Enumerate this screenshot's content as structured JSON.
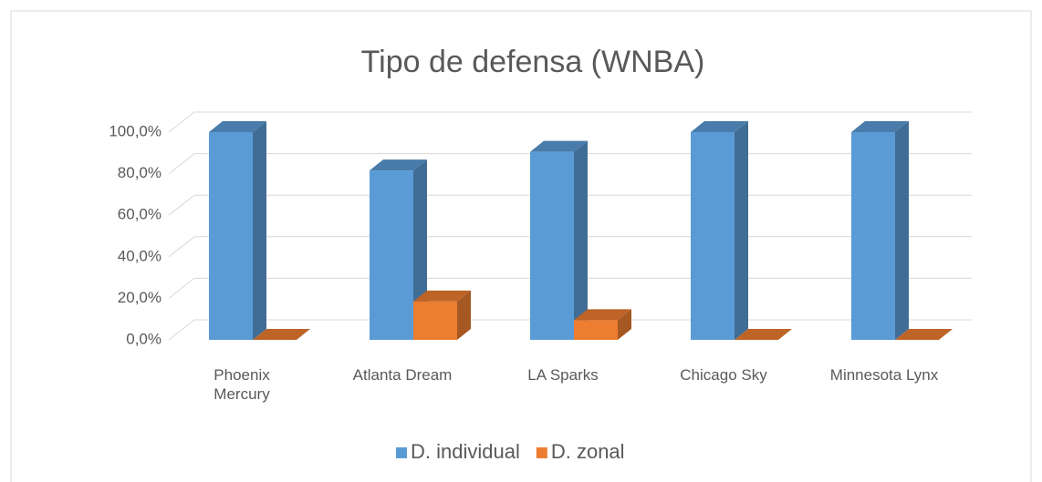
{
  "chart_data": {
    "type": "bar3d",
    "title": "Tipo de defensa (WNBA)",
    "categories": [
      "Phoenix Mercury",
      "Atlanta Dream",
      "LA Sparks",
      "Chicago Sky",
      "Minnesota Lynx"
    ],
    "series": [
      {
        "name": "D. individual",
        "color": "#5b9bd5",
        "values": [
          100,
          81.5,
          90.5,
          100,
          100
        ]
      },
      {
        "name": "D. zonal",
        "color": "#ed7d31",
        "values": [
          0,
          18.5,
          9.5,
          0,
          0
        ]
      }
    ],
    "ylim": [
      0,
      100
    ],
    "yticks": [
      {
        "value": 0,
        "label": "0,0%"
      },
      {
        "value": 20,
        "label": "20,0%"
      },
      {
        "value": 40,
        "label": "40,0%"
      },
      {
        "value": 60,
        "label": "60,0%"
      },
      {
        "value": 80,
        "label": "80,0%"
      },
      {
        "value": 100,
        "label": "100,0%"
      }
    ],
    "grid": true,
    "legend": "bottom"
  }
}
